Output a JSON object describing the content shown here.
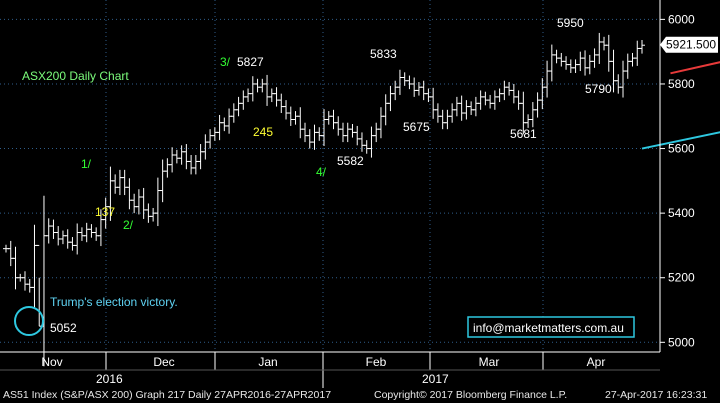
{
  "chart_data": {
    "type": "ohlc",
    "title": "ASX200 Daily Chart",
    "y_range": [
      4970,
      6060
    ],
    "y_ticks": [
      5000,
      5200,
      5400,
      5600,
      5800,
      6000
    ],
    "y_tick_labels": [
      "5000",
      "5200",
      "5400",
      "5600",
      "5800",
      "6000"
    ],
    "last_price": 5921.5,
    "last_price_label": "5921.500",
    "months": [
      "Nov",
      "Dec",
      "Jan",
      "Feb",
      "Mar",
      "Apr"
    ],
    "years": [
      "2016",
      "2017"
    ],
    "series": [
      {
        "name": "",
        "values": [
          5290,
          5260,
          5200,
          5200,
          5180,
          5170,
          5300,
          5050,
          5330,
          5360,
          5340,
          5320,
          5330,
          5310,
          5300,
          5340,
          5330,
          5350,
          5340,
          5330,
          5380,
          5420,
          5500,
          5480,
          5510,
          5480,
          5440,
          5420,
          5450,
          5410,
          5390,
          5400,
          5470,
          5530,
          5550,
          5580,
          5570,
          5590,
          5560,
          5540,
          5560,
          5590,
          5620,
          5640,
          5650,
          5680,
          5670,
          5700,
          5720,
          5740,
          5760,
          5770,
          5800,
          5790,
          5800,
          5760,
          5770,
          5750,
          5730,
          5710,
          5690,
          5700,
          5660,
          5640,
          5620,
          5650,
          5640,
          5690,
          5700,
          5680,
          5660,
          5640,
          5660,
          5650,
          5630,
          5610,
          5600,
          5640,
          5660,
          5700,
          5740,
          5770,
          5790,
          5820,
          5810,
          5800,
          5780,
          5790,
          5770,
          5760,
          5720,
          5700,
          5680,
          5700,
          5720,
          5740,
          5710,
          5730,
          5720,
          5740,
          5760,
          5750,
          5740,
          5760,
          5770,
          5790,
          5780,
          5760,
          5740,
          5680,
          5690,
          5720,
          5750,
          5790,
          5840,
          5890,
          5880,
          5870,
          5860,
          5850,
          5860,
          5880,
          5850,
          5870,
          5890,
          5930,
          5920,
          5870,
          5810,
          5790,
          5840,
          5870,
          5880,
          5910,
          5920
        ]
      }
    ],
    "trendlines": [
      {
        "name": "",
        "color": "#e83a3a",
        "from": {
          "x": 140,
          "y": 5833
        },
        "to": {
          "x": 186,
          "y": 5985
        }
      },
      {
        "name": "",
        "color": "#2ec8e0",
        "from": {
          "x": 134,
          "y": 5600
        },
        "to": {
          "x": 186,
          "y": 5760
        }
      }
    ],
    "annotations": {
      "title": "ASX200 Daily Chart",
      "w5827": "5827",
      "w5833": "5833",
      "w5950": "5950",
      "w5921": "5921.500",
      "w5675": "5675",
      "w5681": "5681",
      "w5790": "5790",
      "w5582": "5582",
      "w5052": "5052",
      "g1": "1/",
      "g2": "2/",
      "g3": "3/",
      "g4": "4/",
      "y137": "137",
      "y245": "245",
      "trump": "Trump's election victory."
    }
  },
  "footer": {
    "left": "AS51 Index (S&P/ASX 200) Graph 217  Daily 27APR2016-27APR2017",
    "center": "Copyright© 2017 Bloomberg Finance L.P.",
    "right": "27-Apr-2017 16:23:31"
  },
  "watermark": "info@marketmatters.com.au",
  "colors": {
    "background": "#000000",
    "grid": "#2f5d8a",
    "bars": "#ffffff",
    "resistance": "#e83a3a",
    "support": "#2ec8e0",
    "watermark_border": "#2ec8e0"
  }
}
